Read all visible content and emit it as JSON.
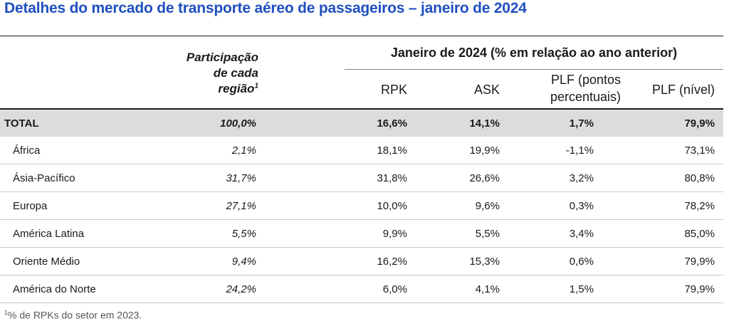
{
  "title": "Detalhes do mercado de transporte aéreo de passageiros – janeiro de 2024",
  "header": {
    "share_line1": "Participação",
    "share_line2": "de cada",
    "share_line3": "região",
    "share_sup": "1",
    "group": "Janeiro de 2024 (% em relação ao ano anterior)",
    "rpk": "RPK",
    "ask": "ASK",
    "plf_pp_line1": "PLF (pontos",
    "plf_pp_line2": "percentuais)",
    "plf_level": "PLF (nível)"
  },
  "rows": [
    {
      "name": "TOTAL",
      "share": "100,0%",
      "rpk": "16,6%",
      "ask": "14,1%",
      "plf_pp": "1,7%",
      "plf": "79,9%"
    },
    {
      "name": "África",
      "share": "2,1%",
      "rpk": "18,1%",
      "ask": "19,9%",
      "plf_pp": "-1,1%",
      "plf": "73,1%"
    },
    {
      "name": "Ásia-Pacífico",
      "share": "31,7%",
      "rpk": "31,8%",
      "ask": "26,6%",
      "plf_pp": "3,2%",
      "plf": "80,8%"
    },
    {
      "name": "Europa",
      "share": "27,1%",
      "rpk": "10,0%",
      "ask": "9,6%",
      "plf_pp": "0,3%",
      "plf": "78,2%"
    },
    {
      "name": "América Latina",
      "share": "5,5%",
      "rpk": "9,9%",
      "ask": "5,5%",
      "plf_pp": "3,4%",
      "plf": "85,0%"
    },
    {
      "name": "Oriente Médio",
      "share": "9,4%",
      "rpk": "16,2%",
      "ask": "15,3%",
      "plf_pp": "0,6%",
      "plf": "79,9%"
    },
    {
      "name": "América do Norte",
      "share": "24,2%",
      "rpk": "6,0%",
      "ask": "4,1%",
      "plf_pp": "1,5%",
      "plf": "79,9%"
    }
  ],
  "footnote": {
    "sup": "1",
    "text": "% de RPKs do setor em 2023."
  },
  "colors": {
    "title": "#1f4fbf",
    "total_row_bg": "#dcdcdc"
  }
}
